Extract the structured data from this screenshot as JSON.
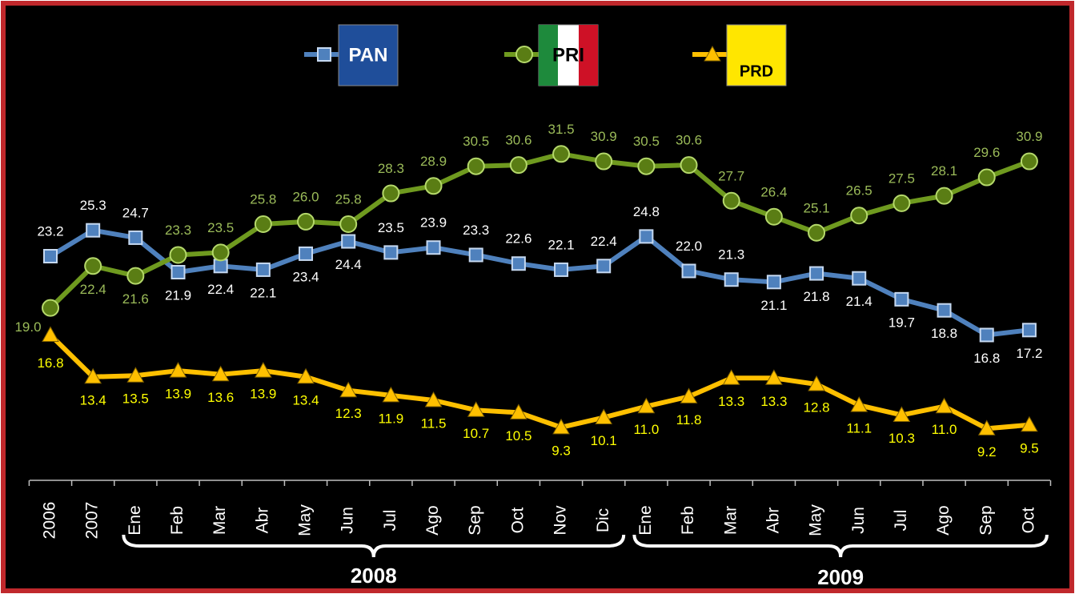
{
  "chart_data": {
    "type": "line",
    "categories": [
      "2006",
      "2007",
      "Ene",
      "Feb",
      "Mar",
      "Abr",
      "May",
      "Jun",
      "Jul",
      "Ago",
      "Sep",
      "Oct",
      "Nov",
      "Dic",
      "Ene",
      "Feb",
      "Mar",
      "Abr",
      "May",
      "Jun",
      "Jul",
      "Ago",
      "Sep",
      "Oct"
    ],
    "groups": [
      "2008",
      "2009"
    ],
    "ylim": [
      5,
      37.5
    ],
    "series": [
      {
        "name": "PAN",
        "color": "#4f81bd",
        "values": [
          23.2,
          25.3,
          24.7,
          21.9,
          22.4,
          22.1,
          23.4,
          24.4,
          23.5,
          23.9,
          23.3,
          22.6,
          22.1,
          22.4,
          24.8,
          22.0,
          21.3,
          21.1,
          21.8,
          21.4,
          19.7,
          18.8,
          16.8,
          17.2
        ],
        "value_labels": [
          "23.2",
          "25.3",
          "24.7",
          "21.9",
          "22.4",
          "22.1",
          "23.4",
          "24.4",
          "23.5",
          "23.9",
          "23.3",
          "22.6",
          "22.1",
          "22.4",
          "24.8",
          "22.0",
          "21.3",
          "21.1",
          "21.8",
          "21.4",
          "19.7",
          "18.8",
          "16.8",
          "17.2"
        ]
      },
      {
        "name": "PRI",
        "color": "#6f9a1f",
        "values": [
          19.0,
          22.4,
          21.6,
          23.3,
          23.5,
          25.8,
          26.0,
          25.8,
          28.3,
          28.9,
          30.5,
          30.6,
          31.5,
          30.9,
          30.5,
          30.6,
          27.7,
          26.4,
          25.1,
          26.5,
          27.5,
          28.1,
          29.6,
          30.9
        ],
        "value_labels": [
          "19.0",
          "22.4",
          "21.6",
          "23.3",
          "23.5",
          "25.8",
          "26.0",
          "25.8",
          "28.3",
          "28.9",
          "30.5",
          "30.6",
          "31.5",
          "30.9",
          "30.5",
          "30.6",
          "27.7",
          "26.4",
          "25.1",
          "26.5",
          "27.5",
          "28.1",
          "29.6",
          "30.9"
        ]
      },
      {
        "name": "PRD",
        "color": "#ffc000",
        "values": [
          16.8,
          13.4,
          13.5,
          13.9,
          13.6,
          13.9,
          13.4,
          12.3,
          11.9,
          11.5,
          10.7,
          10.5,
          9.3,
          10.1,
          11.0,
          11.8,
          13.3,
          13.3,
          12.8,
          11.1,
          10.3,
          11.0,
          9.2,
          9.5
        ],
        "value_labels": [
          "16.8",
          "13.4",
          "13.5",
          "13.9",
          "13.6",
          "13.9",
          "13.4",
          "12.3",
          "11.9",
          "11.5",
          "10.7",
          "10.5",
          "9.3",
          "10.1",
          "11.0",
          "11.8",
          "13.3",
          "13.3",
          "12.8",
          "11.1",
          "10.3",
          "11.0",
          "9.2",
          "9.5"
        ]
      }
    ]
  }
}
